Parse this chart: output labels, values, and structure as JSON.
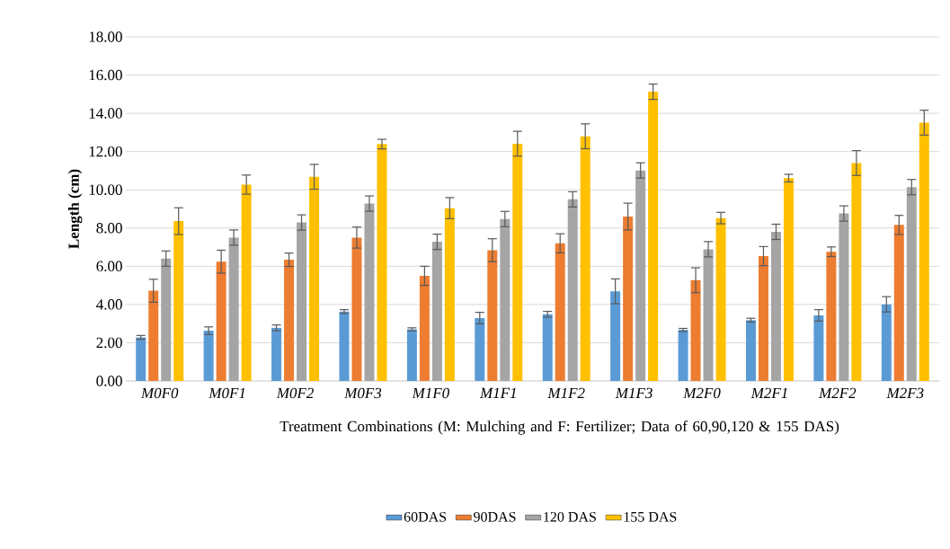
{
  "chart_data": {
    "type": "bar",
    "ylabel": "Length (cm)",
    "xlabel": "Treatment Combinations (M: Mulching and F: Fertilizer; Data of 60,90,120 & 155 DAS)",
    "categories": [
      "M0F0",
      "M0F1",
      "M0F2",
      "M0F3",
      "M1F0",
      "M1F1",
      "M1F2",
      "M1F3",
      "M2F0",
      "M2F1",
      "M2F2",
      "M2F3"
    ],
    "series": [
      {
        "name": "60DAS",
        "color": "#5b9bd5",
        "values": [
          2.28,
          2.63,
          2.78,
          3.63,
          2.7,
          3.29,
          3.49,
          4.69,
          2.67,
          3.18,
          3.43,
          4.01
        ],
        "errors": [
          0.1,
          0.2,
          0.15,
          0.1,
          0.08,
          0.3,
          0.15,
          0.65,
          0.08,
          0.1,
          0.3,
          0.4
        ]
      },
      {
        "name": "90DAS",
        "color": "#ed7d31",
        "values": [
          4.72,
          6.24,
          6.34,
          7.5,
          5.5,
          6.84,
          7.2,
          8.6,
          5.27,
          6.53,
          6.76,
          8.16
        ],
        "errors": [
          0.6,
          0.6,
          0.35,
          0.55,
          0.5,
          0.6,
          0.5,
          0.7,
          0.65,
          0.5,
          0.25,
          0.5
        ]
      },
      {
        "name": "120 DAS",
        "color": "#a5a5a5",
        "values": [
          6.4,
          7.5,
          8.29,
          9.28,
          7.28,
          8.47,
          9.5,
          11.01,
          6.89,
          7.8,
          8.76,
          10.14
        ],
        "errors": [
          0.4,
          0.4,
          0.4,
          0.4,
          0.4,
          0.4,
          0.4,
          0.4,
          0.4,
          0.4,
          0.4,
          0.4
        ]
      },
      {
        "name": "155 DAS",
        "color": "#ffc000",
        "values": [
          8.36,
          10.27,
          10.68,
          12.39,
          9.04,
          12.41,
          12.8,
          15.13,
          8.52,
          10.61,
          11.4,
          13.51
        ],
        "errors": [
          0.7,
          0.5,
          0.65,
          0.25,
          0.55,
          0.65,
          0.65,
          0.4,
          0.3,
          0.2,
          0.65,
          0.65
        ]
      }
    ],
    "ylim": [
      0,
      18
    ],
    "yticks": [
      {
        "value": 0,
        "label": "0.00"
      },
      {
        "value": 2,
        "label": "2.00"
      },
      {
        "value": 4,
        "label": "4.00"
      },
      {
        "value": 6,
        "label": "6.00"
      },
      {
        "value": 8,
        "label": "8.00"
      },
      {
        "value": 10,
        "label": "10.00"
      },
      {
        "value": 12,
        "label": "12.00"
      },
      {
        "value": 14,
        "label": "14.00"
      },
      {
        "value": 16,
        "label": "16.00"
      },
      {
        "value": 18,
        "label": "18.00"
      }
    ],
    "grid": "y",
    "legend": "bottom"
  }
}
